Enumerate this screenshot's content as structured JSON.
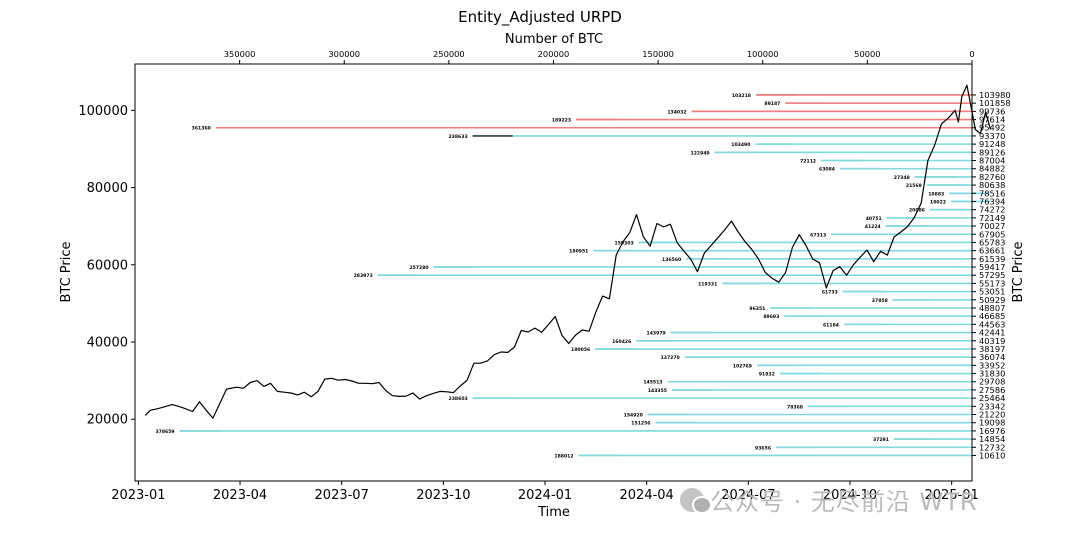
{
  "watermark": "公众号 · 无尽前沿 WTR",
  "chart_data": {
    "type": "line",
    "title": "Entity_Adjusted URPD",
    "xlabel": "Time",
    "ylabel": "BTC Price",
    "ylabel_right": "BTC Price",
    "top_xlabel": "Number of BTC",
    "time_ticks": [
      "2023-01",
      "2023-04",
      "2023-07",
      "2023-10",
      "2024-01",
      "2024-04",
      "2024-07",
      "2024-10",
      "2025-01"
    ],
    "time_range_months": [
      -0.1,
      24.6
    ],
    "ylim": [
      4000,
      112000
    ],
    "yticks": [
      20000,
      40000,
      60000,
      80000,
      100000
    ],
    "top_xlim": [
      400000,
      0
    ],
    "top_ticks": [
      350000,
      300000,
      250000,
      200000,
      150000,
      100000,
      50000,
      0
    ],
    "price_series": {
      "name": "BTC Price",
      "color": "#000000",
      "points": [
        [
          0.2,
          21000
        ],
        [
          0.35,
          22300
        ],
        [
          0.6,
          22800
        ],
        [
          1.0,
          23800
        ],
        [
          1.3,
          23000
        ],
        [
          1.6,
          22000
        ],
        [
          1.8,
          24500
        ],
        [
          2.0,
          22300
        ],
        [
          2.2,
          20300
        ],
        [
          2.4,
          24000
        ],
        [
          2.6,
          27800
        ],
        [
          2.9,
          28300
        ],
        [
          3.1,
          28000
        ],
        [
          3.3,
          29500
        ],
        [
          3.5,
          30000
        ],
        [
          3.7,
          28500
        ],
        [
          3.9,
          29300
        ],
        [
          4.1,
          27200
        ],
        [
          4.3,
          27000
        ],
        [
          4.5,
          26800
        ],
        [
          4.7,
          26300
        ],
        [
          4.9,
          27000
        ],
        [
          5.1,
          25800
        ],
        [
          5.3,
          27200
        ],
        [
          5.5,
          30400
        ],
        [
          5.7,
          30600
        ],
        [
          5.9,
          30100
        ],
        [
          6.1,
          30300
        ],
        [
          6.3,
          29900
        ],
        [
          6.5,
          29300
        ],
        [
          6.7,
          29300
        ],
        [
          6.9,
          29200
        ],
        [
          7.1,
          29500
        ],
        [
          7.3,
          27400
        ],
        [
          7.5,
          26100
        ],
        [
          7.7,
          25900
        ],
        [
          7.9,
          26000
        ],
        [
          8.1,
          26800
        ],
        [
          8.3,
          25200
        ],
        [
          8.5,
          26100
        ],
        [
          8.7,
          26700
        ],
        [
          8.9,
          27200
        ],
        [
          9.1,
          27100
        ],
        [
          9.3,
          26900
        ],
        [
          9.5,
          28600
        ],
        [
          9.7,
          30100
        ],
        [
          9.9,
          34500
        ],
        [
          10.1,
          34500
        ],
        [
          10.3,
          35100
        ],
        [
          10.5,
          36700
        ],
        [
          10.7,
          37400
        ],
        [
          10.9,
          37300
        ],
        [
          11.1,
          38700
        ],
        [
          11.3,
          43000
        ],
        [
          11.5,
          42600
        ],
        [
          11.7,
          43600
        ],
        [
          11.9,
          42500
        ],
        [
          12.1,
          44500
        ],
        [
          12.3,
          46600
        ],
        [
          12.5,
          41700
        ],
        [
          12.7,
          39600
        ],
        [
          12.9,
          41800
        ],
        [
          13.1,
          43100
        ],
        [
          13.3,
          42800
        ],
        [
          13.5,
          47800
        ],
        [
          13.7,
          51900
        ],
        [
          13.9,
          51200
        ],
        [
          14.1,
          62500
        ],
        [
          14.3,
          66000
        ],
        [
          14.5,
          68300
        ],
        [
          14.7,
          73000
        ],
        [
          14.9,
          67300
        ],
        [
          15.1,
          64800
        ],
        [
          15.3,
          70700
        ],
        [
          15.5,
          69800
        ],
        [
          15.7,
          70500
        ],
        [
          15.9,
          65700
        ],
        [
          16.1,
          63500
        ],
        [
          16.3,
          61500
        ],
        [
          16.5,
          58200
        ],
        [
          16.7,
          63000
        ],
        [
          16.9,
          65000
        ],
        [
          17.1,
          67000
        ],
        [
          17.3,
          69000
        ],
        [
          17.5,
          71300
        ],
        [
          17.7,
          68500
        ],
        [
          17.9,
          66000
        ],
        [
          18.1,
          64000
        ],
        [
          18.3,
          61500
        ],
        [
          18.5,
          58000
        ],
        [
          18.7,
          56500
        ],
        [
          18.9,
          55500
        ],
        [
          19.1,
          58000
        ],
        [
          19.3,
          64500
        ],
        [
          19.5,
          67800
        ],
        [
          19.7,
          65000
        ],
        [
          19.9,
          61500
        ],
        [
          20.1,
          60500
        ],
        [
          20.3,
          54000
        ],
        [
          20.5,
          58500
        ],
        [
          20.7,
          59500
        ],
        [
          20.9,
          57300
        ],
        [
          21.1,
          60000
        ],
        [
          21.3,
          62000
        ],
        [
          21.5,
          63800
        ],
        [
          21.7,
          60800
        ],
        [
          21.9,
          63500
        ],
        [
          22.1,
          62500
        ],
        [
          22.3,
          67200
        ],
        [
          22.5,
          68500
        ],
        [
          22.7,
          69900
        ],
        [
          22.9,
          72300
        ],
        [
          23.1,
          76000
        ],
        [
          23.3,
          87000
        ],
        [
          23.5,
          91000
        ],
        [
          23.7,
          96500
        ],
        [
          23.9,
          98000
        ],
        [
          24.1,
          100000
        ],
        [
          24.2,
          97000
        ],
        [
          24.3,
          103500
        ],
        [
          24.45,
          106500
        ],
        [
          24.55,
          102000
        ],
        [
          24.7,
          95000
        ],
        [
          24.85,
          94000
        ],
        [
          25.0,
          99500
        ],
        [
          25.15,
          95000
        ]
      ]
    },
    "distribution_bins": [
      {
        "price": 103980,
        "btc": 103218
      },
      {
        "price": 101858,
        "btc": 89187
      },
      {
        "price": 99736,
        "btc": 134032
      },
      {
        "price": 97614,
        "btc": 189223
      },
      {
        "price": 95492,
        "btc": 361360
      },
      {
        "price": 93370,
        "btc": 238633
      },
      {
        "price": 91248,
        "btc": 103490
      },
      {
        "price": 89126,
        "btc": 122949
      },
      {
        "price": 87004,
        "btc": 72112
      },
      {
        "price": 84882,
        "btc": 63084
      },
      {
        "price": 82760,
        "btc": 27348
      },
      {
        "price": 80638,
        "btc": 21569
      },
      {
        "price": 78516,
        "btc": 10883
      },
      {
        "price": 76394,
        "btc": 10022
      },
      {
        "price": 74272,
        "btc": 20086
      },
      {
        "price": 72149,
        "btc": 40751
      },
      {
        "price": 70027,
        "btc": 41224
      },
      {
        "price": 67905,
        "btc": 67313
      },
      {
        "price": 65783,
        "btc": 159303
      },
      {
        "price": 63661,
        "btc": 180951
      },
      {
        "price": 61539,
        "btc": 136560
      },
      {
        "price": 59417,
        "btc": 257280
      },
      {
        "price": 57295,
        "btc": 283973
      },
      {
        "price": 55173,
        "btc": 119331
      },
      {
        "price": 53051,
        "btc": 61733
      },
      {
        "price": 50929,
        "btc": 37858
      },
      {
        "price": 48807,
        "btc": 96351
      },
      {
        "price": 46685,
        "btc": 89693
      },
      {
        "price": 44563,
        "btc": 61184
      },
      {
        "price": 42441,
        "btc": 143979
      },
      {
        "price": 40319,
        "btc": 160426
      },
      {
        "price": 38197,
        "btc": 180056
      },
      {
        "price": 36074,
        "btc": 137270
      },
      {
        "price": 33952,
        "btc": 102769
      },
      {
        "price": 31830,
        "btc": 91832
      },
      {
        "price": 29708,
        "btc": 145513
      },
      {
        "price": 27586,
        "btc": 143355
      },
      {
        "price": 25464,
        "btc": 238603
      },
      {
        "price": 23342,
        "btc": 78368
      },
      {
        "price": 21220,
        "btc": 154920
      },
      {
        "price": 19098,
        "btc": 151256
      },
      {
        "price": 16976,
        "btc": 378659
      },
      {
        "price": 14854,
        "btc": 37291
      },
      {
        "price": 12732,
        "btc": 93656
      },
      {
        "price": 10610,
        "btc": 188012
      }
    ],
    "red_threshold": 95000,
    "colors": {
      "above": "#f08080",
      "below": "#7fd9de",
      "highlight": "#404040"
    }
  }
}
